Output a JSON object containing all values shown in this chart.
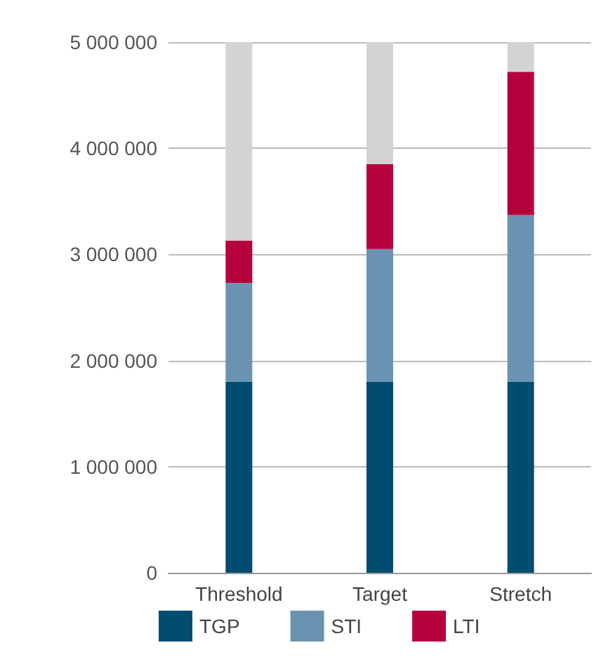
{
  "chart_data": {
    "type": "bar",
    "stacked": true,
    "categories": [
      "Threshold",
      "Target",
      "Stretch"
    ],
    "series": [
      {
        "name": "TGP",
        "color": "#004d71",
        "values": [
          1800000,
          1800000,
          1800000
        ]
      },
      {
        "name": "STI",
        "color": "#6a93b2",
        "values": [
          930000,
          1250000,
          1570000
        ]
      },
      {
        "name": "LTI",
        "color": "#b5003b",
        "values": [
          400000,
          800000,
          1350000
        ]
      },
      {
        "color": "#d2d3d5",
        "values": [
          1870000,
          1150000,
          280000
        ]
      }
    ],
    "ylim": [
      0,
      5000000
    ],
    "yticks": [
      {
        "value": 0,
        "label": "0"
      },
      {
        "value": 1000000,
        "label": "1 000 000"
      },
      {
        "value": 2000000,
        "label": "2 000 000"
      },
      {
        "value": 3000000,
        "label": "3 000 000"
      },
      {
        "value": 4000000,
        "label": "4 000 000"
      },
      {
        "value": 5000000,
        "label": "5 000 000"
      }
    ],
    "grid": "y",
    "legend": "bottom"
  }
}
